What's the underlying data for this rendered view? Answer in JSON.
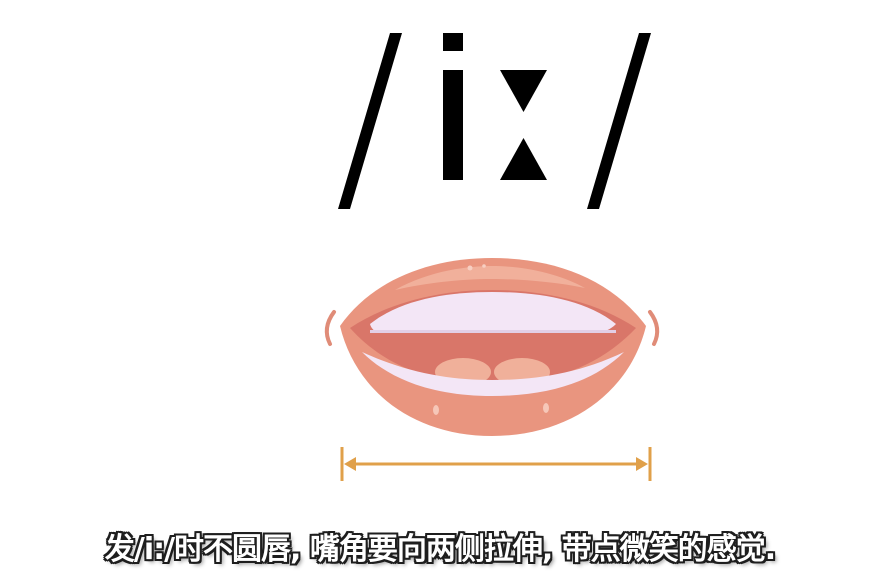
{
  "phonetic_symbol": "/iː/",
  "caption": "发/i:/时不圆唇, 嘴角要向两侧拉伸, 带点微笑的感觉.",
  "colors": {
    "symbol": "#000000",
    "lip": "#e9957f",
    "lip_highlight": "#f3b6a3",
    "mouth_inner": "#d97669",
    "teeth": "#f3e6f6",
    "tongue": "#f0b09a",
    "measure_line": "#e0a04a",
    "caption_text": "#ffffff",
    "caption_outline": "#1e1e1e"
  },
  "icons": [
    "mouth-illustration-icon",
    "width-arrow-icon"
  ]
}
